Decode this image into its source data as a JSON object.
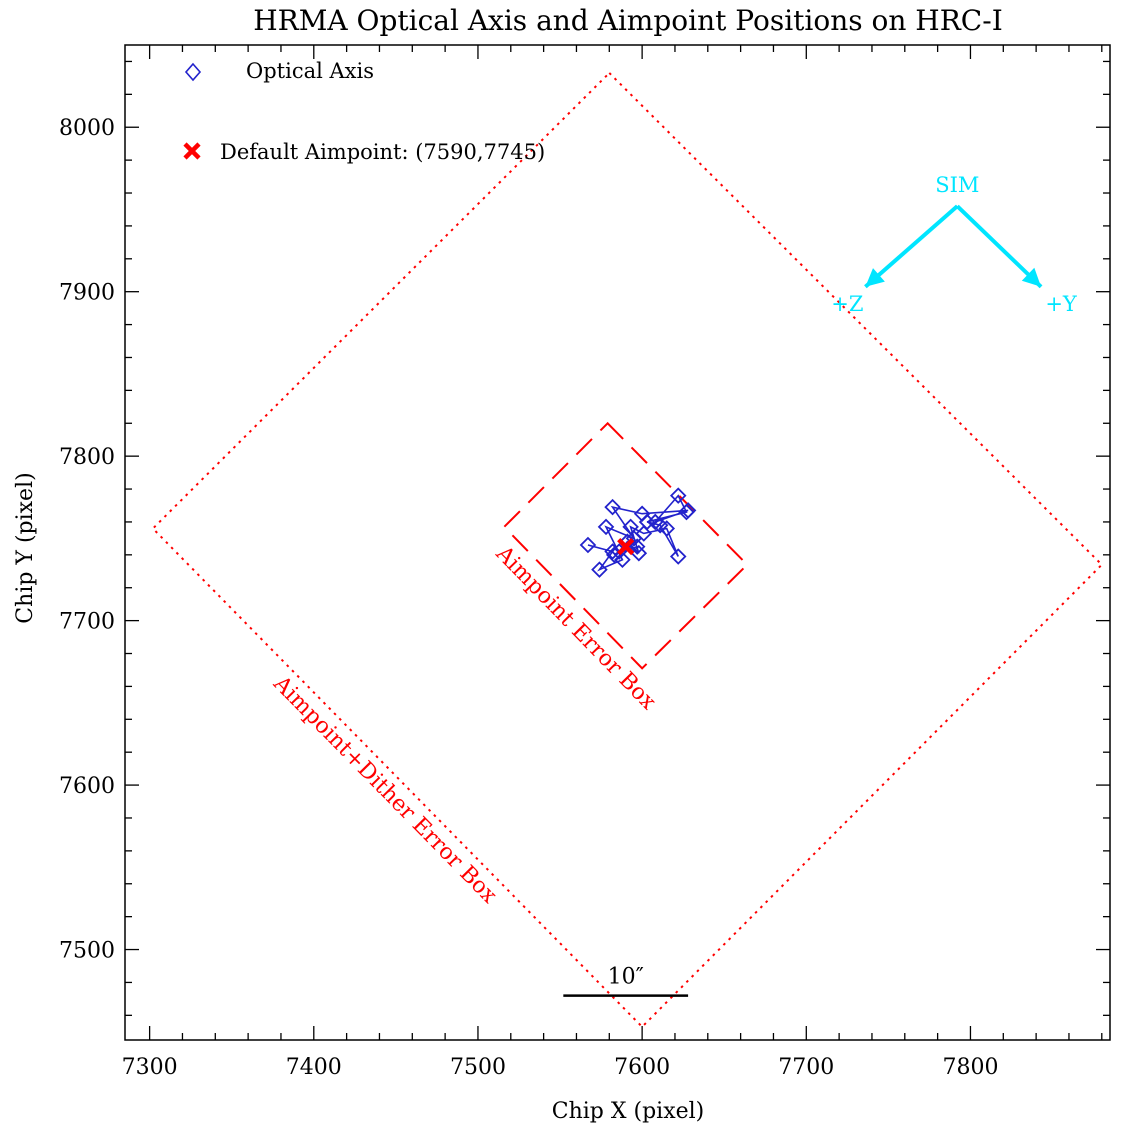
{
  "chart_data": {
    "type": "scatter",
    "title": "HRMA Optical Axis and Aimpoint Positions on HRC-I",
    "xlabel": "Chip X (pixel)",
    "ylabel": "Chip Y (pixel)",
    "xlim": [
      7285,
      7885
    ],
    "ylim": [
      7445,
      8050
    ],
    "xticks": [
      7300,
      7400,
      7500,
      7600,
      7700,
      7800
    ],
    "yticks": [
      7500,
      7600,
      7700,
      7800,
      7900,
      8000
    ],
    "x_minor_step": 20,
    "y_minor_step": 20,
    "legend": {
      "placement": "top-left",
      "entries": [
        {
          "label": "Optical Axis",
          "marker": "diamond",
          "color": "#2222cc"
        },
        {
          "label": "Default Aimpoint: (7590,7745)",
          "marker": "x",
          "color": "#ff0000"
        }
      ]
    },
    "series": [
      {
        "name": "Optical Axis",
        "marker": "diamond",
        "line": true,
        "color": "#2222cc",
        "points": [
          [
            7567,
            7746
          ],
          [
            7582,
            7742
          ],
          [
            7574,
            7731
          ],
          [
            7588,
            7737
          ],
          [
            7578,
            7757
          ],
          [
            7595,
            7750
          ],
          [
            7582,
            7769
          ],
          [
            7600,
            7765
          ],
          [
            7628,
            7767
          ],
          [
            7608,
            7760
          ],
          [
            7622,
            7776
          ],
          [
            7627,
            7766
          ],
          [
            7603,
            7760
          ],
          [
            7611,
            7758
          ],
          [
            7622,
            7739
          ],
          [
            7615,
            7756
          ],
          [
            7601,
            7753
          ],
          [
            7593,
            7757
          ],
          [
            7598,
            7741
          ],
          [
            7591,
            7748
          ],
          [
            7586,
            7742
          ],
          [
            7583,
            7740
          ],
          [
            7597,
            7745
          ]
        ]
      },
      {
        "name": "Default Aimpoint: (7590,7745)",
        "marker": "x",
        "color": "#ff0000",
        "points": [
          [
            7590,
            7745
          ]
        ]
      }
    ],
    "boxes": [
      {
        "label": "Aimpoint Error Box",
        "style": "dashed",
        "color": "#ff0000",
        "corners": [
          [
            7579,
            7820
          ],
          [
            7664,
            7734
          ],
          [
            7600,
            7671
          ],
          [
            7516,
            7757
          ]
        ]
      },
      {
        "label": "Aimpoint+Dither Error Box",
        "style": "dotted",
        "color": "#ff0000",
        "corners": [
          [
            7580,
            8033
          ],
          [
            7880,
            7734
          ],
          [
            7600,
            7453
          ],
          [
            7302,
            7756
          ]
        ]
      }
    ],
    "annotations": {
      "sim": {
        "color": "#00e5ff",
        "origin_label": "SIM",
        "z_label": "+Z",
        "y_label": "+Y",
        "origin": [
          7792,
          7952
        ],
        "z_tip": [
          7736,
          7903
        ],
        "y_tip": [
          7843,
          7903
        ]
      },
      "scale_bar": {
        "label": "10″",
        "x": [
          7552,
          7628
        ],
        "y": 7472,
        "color": "#000000"
      }
    }
  }
}
